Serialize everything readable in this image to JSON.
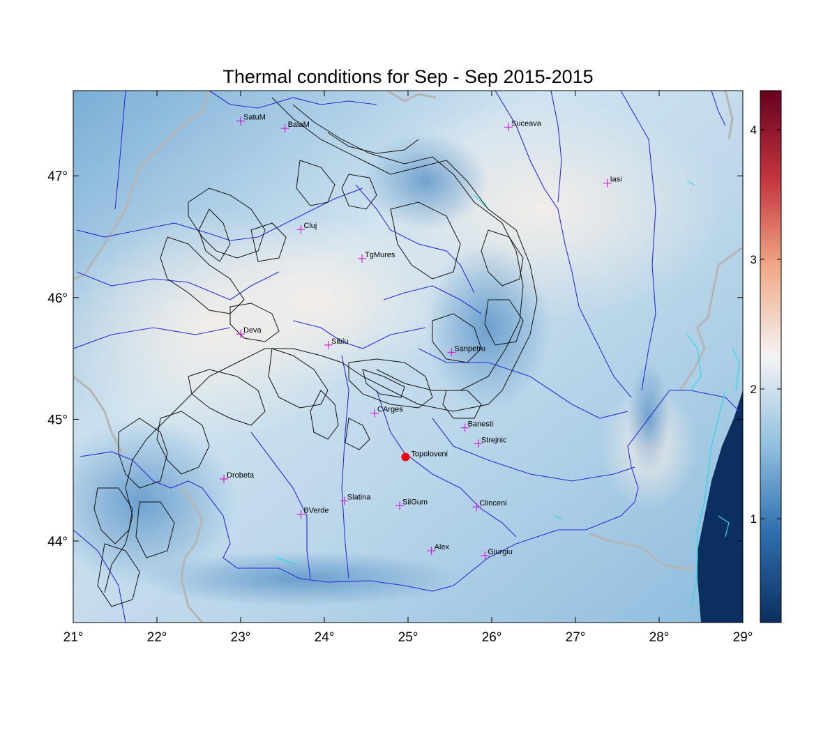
{
  "title": "Thermal conditions for Sep - Sep  2015-2015",
  "map": {
    "lon_range": [
      21,
      29
    ],
    "lat_range": [
      43.33,
      47.7
    ],
    "x_ticks": [
      {
        "value": 21,
        "label": "21°"
      },
      {
        "value": 22,
        "label": "22°"
      },
      {
        "value": 23,
        "label": "23°"
      },
      {
        "value": 24,
        "label": "24°"
      },
      {
        "value": 25,
        "label": "25°"
      },
      {
        "value": 26,
        "label": "26°"
      },
      {
        "value": 27,
        "label": "27°"
      },
      {
        "value": 28,
        "label": "28°"
      },
      {
        "value": 29,
        "label": "29°"
      }
    ],
    "y_ticks": [
      {
        "value": 44,
        "label": "44°"
      },
      {
        "value": 45,
        "label": "45°"
      },
      {
        "value": 46,
        "label": "46°"
      },
      {
        "value": 47,
        "label": "47°"
      }
    ],
    "cities": [
      {
        "name": "SatuM",
        "lon": 23.0,
        "lat": 47.45
      },
      {
        "name": "BaiaM",
        "lon": 23.53,
        "lat": 47.39
      },
      {
        "name": "Suceava",
        "lon": 26.2,
        "lat": 47.4
      },
      {
        "name": "Iasi",
        "lon": 27.38,
        "lat": 46.94
      },
      {
        "name": "Cluj",
        "lon": 23.72,
        "lat": 46.56
      },
      {
        "name": "TgMures",
        "lon": 24.45,
        "lat": 46.32
      },
      {
        "name": "Deva",
        "lon": 23.0,
        "lat": 45.7
      },
      {
        "name": "Sibiu",
        "lon": 24.05,
        "lat": 45.61
      },
      {
        "name": "Sanpetru",
        "lon": 25.52,
        "lat": 45.55
      },
      {
        "name": "CArges",
        "lon": 24.6,
        "lat": 45.05
      },
      {
        "name": "Banesti",
        "lon": 25.68,
        "lat": 44.93
      },
      {
        "name": "Strejnic",
        "lon": 25.84,
        "lat": 44.8
      },
      {
        "name": "Drobeta",
        "lon": 22.8,
        "lat": 44.51
      },
      {
        "name": "Slatina",
        "lon": 24.24,
        "lat": 44.33
      },
      {
        "name": "SilGum",
        "lon": 24.9,
        "lat": 44.29
      },
      {
        "name": "Clinceni",
        "lon": 25.82,
        "lat": 44.28
      },
      {
        "name": "BVerde",
        "lon": 23.72,
        "lat": 44.22
      },
      {
        "name": "Alex",
        "lon": 25.28,
        "lat": 43.92
      },
      {
        "name": "Giurgiu",
        "lon": 25.92,
        "lat": 43.88
      }
    ],
    "highlight": {
      "name": "Topoloveni",
      "lon": 24.97,
      "lat": 44.69
    }
  },
  "colorbar": {
    "range": [
      0.2,
      4.3
    ],
    "ticks": [
      1,
      2,
      3,
      4
    ],
    "colors": [
      "#0b2f5e",
      "#2f6eae",
      "#8fbfdf",
      "#f4f4f4",
      "#f1a886",
      "#c4373f",
      "#67001f"
    ]
  }
}
